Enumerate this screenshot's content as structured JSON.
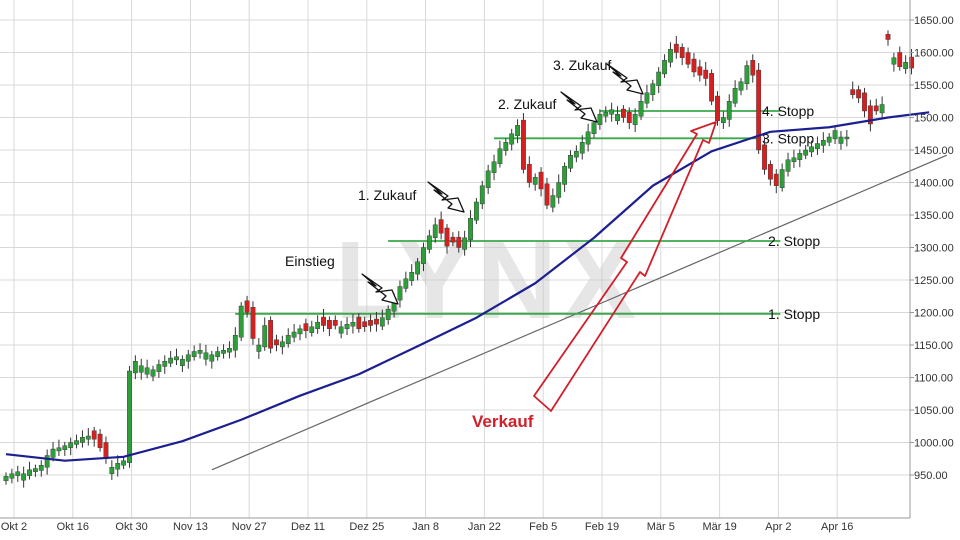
{
  "chart_data": {
    "type": "candlestick",
    "watermark": "LYNX",
    "y_ticks": [
      "950.00",
      "1000.00",
      "1050.00",
      "1100.00",
      "1150.00",
      "1200.00",
      "1250.00",
      "1300.00",
      "1350.00",
      "1400.00",
      "1450.00",
      "1500.00",
      "1550.00",
      "1600.00",
      "1650.00"
    ],
    "ylim": [
      900,
      1670
    ],
    "grid": true,
    "x_ticks": [
      {
        "label": "Okt 2",
        "i": 0
      },
      {
        "label": "Okt 16",
        "i": 10
      },
      {
        "label": "Okt 30",
        "i": 20
      },
      {
        "label": "Nov 13",
        "i": 30
      },
      {
        "label": "Nov 27",
        "i": 40
      },
      {
        "label": "Dez 11",
        "i": 50
      },
      {
        "label": "Dez 25",
        "i": 60
      },
      {
        "label": "Jan 8",
        "i": 70
      },
      {
        "label": "Jan 22",
        "i": 80
      },
      {
        "label": "Feb 5",
        "i": 90
      },
      {
        "label": "Feb 19",
        "i": 100
      },
      {
        "label": "Mär 5",
        "i": 110
      },
      {
        "label": "Mär 19",
        "i": 120
      },
      {
        "label": "Apr 2",
        "i": 130
      },
      {
        "label": "Apr 16",
        "i": 140
      }
    ],
    "closes": [
      948,
      952,
      955,
      952,
      958,
      960,
      965,
      980,
      990,
      992,
      995,
      1000,
      1003,
      1008,
      1010,
      1005,
      992,
      975,
      962,
      968,
      972,
      1110,
      1125,
      1118,
      1115,
      1112,
      1120,
      1125,
      1130,
      1132,
      1128,
      1135,
      1140,
      1142,
      1138,
      1135,
      1140,
      1142,
      1145,
      1165,
      1210,
      1200,
      1160,
      1150,
      1180,
      1145,
      1150,
      1155,
      1165,
      1170,
      1175,
      1172,
      1178,
      1185,
      1180,
      1175,
      1180,
      1178,
      1182,
      1185,
      1175,
      1178,
      1180,
      1182,
      1192,
      1205,
      1222,
      1240,
      1252,
      1262,
      1278,
      1300,
      1318,
      1335,
      1322,
      1302,
      1308,
      1300,
      1315,
      1345,
      1370,
      1395,
      1418,
      1432,
      1452,
      1462,
      1475,
      1488,
      1420,
      1400,
      1408,
      1390,
      1365,
      1380,
      1400,
      1425,
      1442,
      1448,
      1462,
      1478,
      1492,
      1505,
      1508,
      1512,
      1505,
      1500,
      1492,
      1505,
      1525,
      1538,
      1552,
      1570,
      1588,
      1605,
      1600,
      1592,
      1582,
      1570,
      1565,
      1560,
      1525,
      1495,
      1500,
      1525,
      1545,
      1555,
      1580,
      1565,
      1450,
      1420,
      1405,
      1395,
      1420,
      1435,
      1438,
      1445,
      1450,
      1455,
      1460,
      1465,
      1470,
      1480,
      1470,
      1470,
      1535,
      1530,
      1510,
      1490,
      1510,
      1520,
      1620,
      1592,
      1578,
      1585,
      1576
    ],
    "bearish_days": [
      15,
      16,
      17,
      41,
      42,
      45,
      46,
      51,
      54,
      55,
      56,
      60,
      61,
      62,
      63,
      74,
      75,
      76,
      77,
      88,
      89,
      91,
      92,
      105,
      106,
      114,
      115,
      116,
      117,
      118,
      119,
      120,
      121,
      127,
      128,
      129,
      130,
      131,
      144,
      145,
      146,
      147,
      148,
      150,
      152,
      154
    ],
    "moving_average": [
      {
        "i": 0,
        "v": 982
      },
      {
        "i": 10,
        "v": 972
      },
      {
        "i": 20,
        "v": 978
      },
      {
        "i": 30,
        "v": 1002
      },
      {
        "i": 40,
        "v": 1035
      },
      {
        "i": 50,
        "v": 1072
      },
      {
        "i": 60,
        "v": 1105
      },
      {
        "i": 70,
        "v": 1148
      },
      {
        "i": 80,
        "v": 1192
      },
      {
        "i": 90,
        "v": 1245
      },
      {
        "i": 100,
        "v": 1315
      },
      {
        "i": 110,
        "v": 1395
      },
      {
        "i": 120,
        "v": 1448
      },
      {
        "i": 130,
        "v": 1478
      },
      {
        "i": 140,
        "v": 1485
      },
      {
        "i": 150,
        "v": 1500
      },
      {
        "i": 157,
        "v": 1508
      }
    ],
    "trendline": [
      {
        "i": 18,
        "v": 958
      },
      {
        "i": 160,
        "v": 1442
      }
    ],
    "stop_lines": [
      {
        "label": "1. Stopp",
        "value": 1198,
        "from_i": 40,
        "to_i": 130
      },
      {
        "label": "2. Stopp",
        "value": 1310,
        "from_i": 66,
        "to_i": 130
      },
      {
        "label": "3. Stopp",
        "value": 1468,
        "from_i": 84,
        "to_i": 126
      },
      {
        "label": "4. Stopp",
        "value": 1510,
        "from_i": 102,
        "to_i": 130
      }
    ],
    "entry_labels": [
      {
        "label": "Einstieg",
        "i": 69,
        "v": 1212
      },
      {
        "label": "1. Zukauf",
        "i": 81,
        "v": 1363
      },
      {
        "label": "2. Zukauf",
        "i": 104,
        "v": 1527
      },
      {
        "label": "3. Zukauf",
        "i": 113,
        "v": 1545
      }
    ],
    "sell_label": "Verkauf",
    "colors": {
      "bull": "#2e9e3a",
      "bear": "#d62020",
      "ma": "#1b1f8f",
      "stop": "#3aa94a",
      "trend": "#666666",
      "grid": "#d8d8d8",
      "sell": "#d0202a"
    }
  }
}
